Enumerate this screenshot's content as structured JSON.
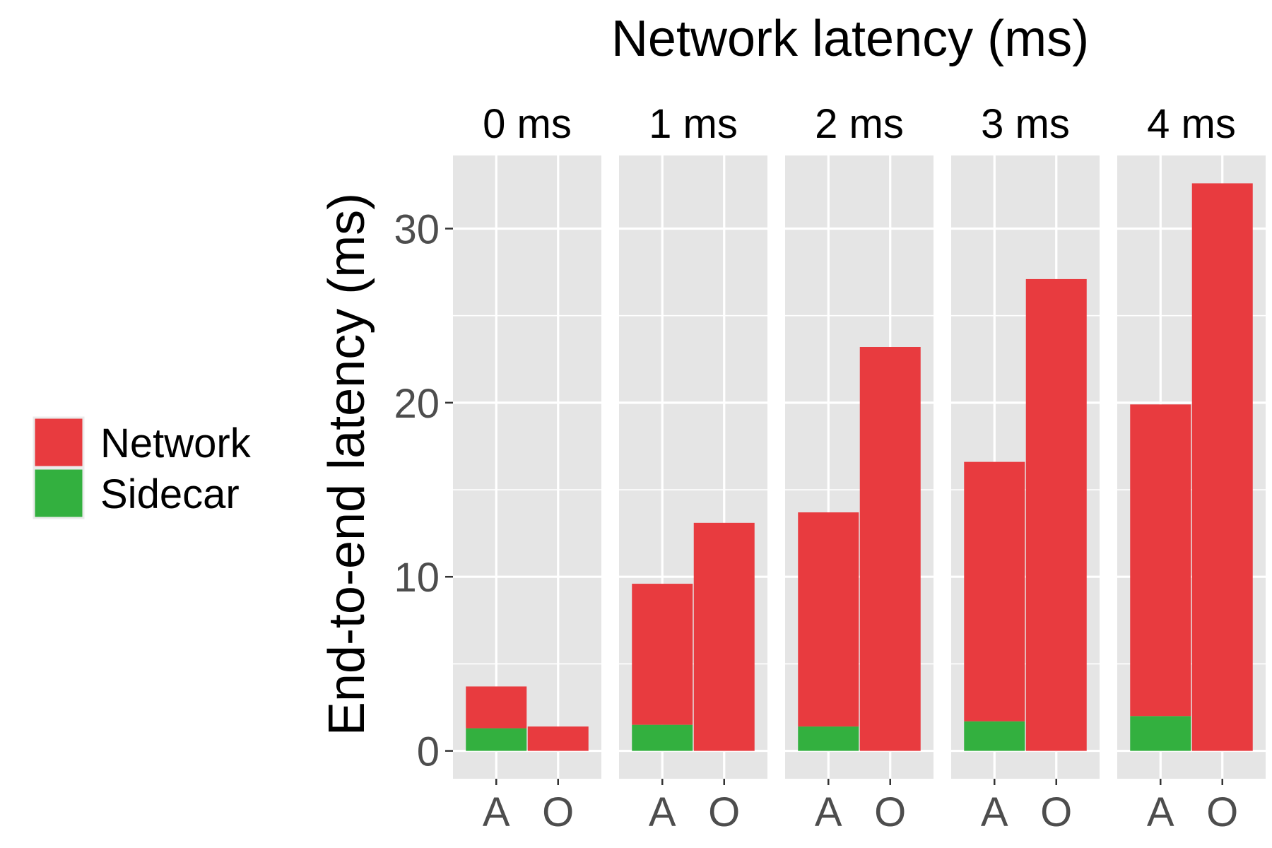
{
  "chart_data": {
    "type": "bar",
    "stacked": true,
    "faceted": true,
    "title": "Network latency (ms)",
    "ylabel": "End-to-end latency (ms)",
    "xlabel": "",
    "facets": [
      "0 ms",
      "1 ms",
      "2 ms",
      "3 ms",
      "4 ms"
    ],
    "categories": [
      "A",
      "O"
    ],
    "ylim": [
      -1.6,
      34.2
    ],
    "y_ticks": [
      0,
      10,
      20,
      30
    ],
    "y_tick_labels": [
      "0",
      "10",
      "20",
      "30"
    ],
    "grid": true,
    "legend_position": "left",
    "series": [
      {
        "name": "Sidecar",
        "color": "#33B03F",
        "values": [
          [
            1.3,
            0.0
          ],
          [
            1.5,
            0.0
          ],
          [
            1.4,
            0.0
          ],
          [
            1.7,
            0.0
          ],
          [
            2.0,
            0.0
          ]
        ]
      },
      {
        "name": "Network",
        "color": "#E83B3F",
        "values": [
          [
            2.4,
            1.4
          ],
          [
            8.1,
            13.1
          ],
          [
            12.3,
            23.2
          ],
          [
            14.9,
            27.1
          ],
          [
            17.9,
            32.6
          ]
        ]
      }
    ],
    "legend": [
      {
        "name": "Network",
        "color": "#E83B3F"
      },
      {
        "name": "Sidecar",
        "color": "#33B03F"
      }
    ],
    "panel_background": "#E5E5E5",
    "grid_color": "#FFFFFF",
    "text_color": "#000000",
    "tick_label_color": "#4D4D4D"
  }
}
